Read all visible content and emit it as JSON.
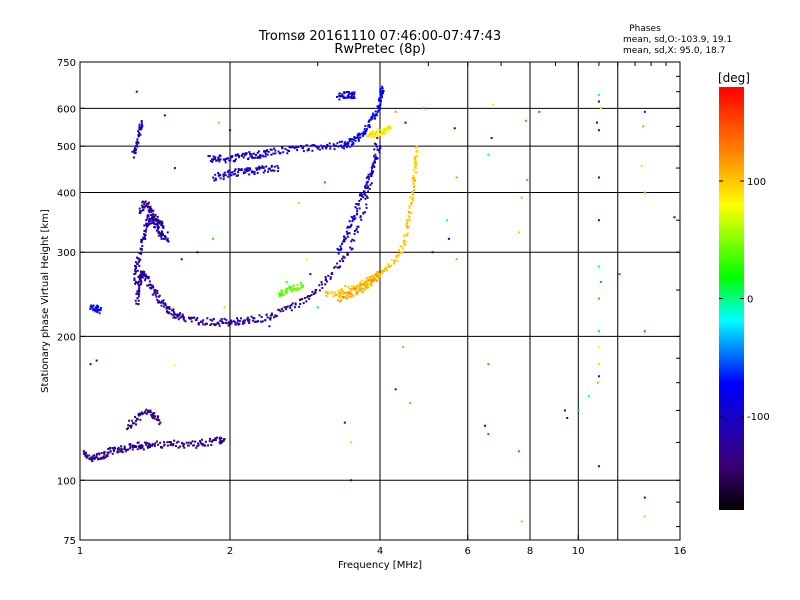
{
  "chart_data": {
    "type": "scatter",
    "title": "Tromsø 20161110 07:46:00-07:47:43",
    "subtitle": "RwPretec (8p)",
    "xlabel": "Frequency [MHz]",
    "ylabel": "Stationary phase Virtual Height [km]",
    "x_scale": "log",
    "y_scale": "log",
    "xlim": [
      1,
      16
    ],
    "ylim": [
      75,
      750
    ],
    "x_ticks": [
      1,
      2,
      4,
      6,
      8,
      10,
      16
    ],
    "x_tick_labels": [
      "1",
      "2",
      "4",
      "6",
      "8",
      "10",
      "16"
    ],
    "x_grid": [
      2,
      4,
      6,
      8,
      10,
      12
    ],
    "y_ticks": [
      75,
      100,
      200,
      300,
      400,
      500,
      600,
      750
    ],
    "y_tick_labels": [
      "75",
      "100",
      "200",
      "300",
      "400",
      "500",
      "600",
      "750"
    ],
    "y_grid": [
      100,
      200,
      300,
      400,
      500,
      600
    ],
    "grid": true,
    "legend": {
      "title": "Phases",
      "line1": "mean, sd,O:-103.9, 19.1",
      "line2": "mean, sd,X:  95.0, 18.7"
    },
    "colorbar": {
      "label": "[deg]",
      "range": [
        -180,
        180
      ],
      "ticks": [
        100,
        0,
        -100
      ],
      "tick_labels": [
        "100",
        "0",
        "-100"
      ]
    },
    "series": [
      {
        "name": "O",
        "phase_mean": -103.9,
        "traces": [
          {
            "x": [
              1.02,
              1.05,
              1.08,
              1.12,
              1.15,
              1.2,
              1.25,
              1.3,
              1.35,
              1.4,
              1.5,
              1.6,
              1.7,
              1.8,
              1.9,
              1.95
            ],
            "y": [
              114,
              111,
              112,
              113,
              115,
              116,
              117,
              118,
              118,
              119,
              119,
              119,
              119,
              120,
              121,
              122
            ],
            "phase": -125
          },
          {
            "x": [
              1.3,
              1.31,
              1.32,
              1.33,
              1.35,
              1.38,
              1.42,
              1.46,
              1.5,
              1.55,
              1.6,
              1.7,
              1.8,
              1.9,
              2.0,
              2.1,
              2.2,
              2.35,
              2.5,
              2.7,
              2.9,
              3.1,
              3.3,
              3.5,
              3.7,
              3.85,
              3.95
            ],
            "y": [
              235,
              250,
              265,
              270,
              268,
              258,
              245,
              235,
              228,
              222,
              219,
              216,
              215,
              214,
              214,
              215,
              216,
              219,
              224,
              232,
              243,
              260,
              280,
              310,
              360,
              430,
              520
            ],
            "phase": -120
          },
          {
            "x": [
              1.29,
              1.3,
              1.32,
              1.34,
              1.36,
              1.38,
              1.4,
              1.43,
              1.46,
              1.5
            ],
            "y": [
              260,
              280,
              300,
              320,
              340,
              355,
              350,
              335,
              325,
              320
            ],
            "phase": -110
          },
          {
            "x": [
              1.32,
              1.35,
              1.38,
              1.41,
              1.44,
              1.47
            ],
            "y": [
              360,
              380,
              370,
              355,
              345,
              340
            ],
            "phase": -128
          },
          {
            "x": [
              1.82,
              1.9,
              2.0,
              2.1,
              2.2,
              2.3,
              2.4,
              2.6,
              2.8,
              3.0,
              3.2,
              3.4
            ],
            "y": [
              470,
              472,
              470,
              475,
              478,
              480,
              485,
              490,
              495,
              498,
              500,
              505
            ],
            "phase": -95
          },
          {
            "x": [
              1.85,
              1.95,
              2.05,
              2.15,
              2.25,
              2.35,
              2.5
            ],
            "y": [
              430,
              435,
              440,
              442,
              445,
              448,
              450
            ],
            "phase": -100
          },
          {
            "x": [
              3.4,
              3.5,
              3.6,
              3.7,
              3.8,
              3.9,
              4.0,
              4.02,
              4.05
            ],
            "y": [
              500,
              510,
              520,
              535,
              555,
              580,
              610,
              640,
              660
            ],
            "phase": -80
          },
          {
            "x": [
              3.3,
              3.4,
              3.5,
              3.6,
              3.7,
              3.8,
              3.9,
              4.0
            ],
            "y": [
              300,
              320,
              345,
              370,
              400,
              430,
              460,
              500
            ],
            "phase": -90
          },
          {
            "x": [
              1.25,
              1.3,
              1.35,
              1.4,
              1.45
            ],
            "y": [
              130,
              134,
              140,
              137,
              132
            ],
            "phase": -135
          },
          {
            "x": [
              1.28,
              1.3,
              1.32,
              1.33
            ],
            "y": [
              480,
              500,
              540,
              560
            ],
            "phase": -105
          },
          {
            "x": [
              3.3,
              3.4,
              3.5,
              3.55
            ],
            "y": [
              635,
              638,
              640,
              642
            ],
            "phase": -85
          },
          {
            "x": [
              1.05,
              1.08,
              1.1
            ],
            "y": [
              228,
              230,
              227
            ],
            "phase": -75
          }
        ]
      },
      {
        "name": "X",
        "phase_mean": 95.0,
        "traces": [
          {
            "x": [
              3.1,
              3.3,
              3.5,
              3.7,
              3.9,
              4.1,
              4.3,
              4.45,
              4.55,
              4.62,
              4.68,
              4.72,
              4.75
            ],
            "y": [
              245,
              248,
              252,
              258,
              265,
              275,
              290,
              310,
              340,
              380,
              420,
              460,
              500
            ],
            "phase": 100
          },
          {
            "x": [
              3.3,
              3.4,
              3.5,
              3.6,
              3.7,
              3.8,
              3.9,
              4.0
            ],
            "y": [
              240,
              243,
              246,
              250,
              253,
              258,
              264,
              270
            ],
            "phase": 110
          },
          {
            "x": [
              3.8,
              3.9,
              4.0,
              4.1,
              4.2
            ],
            "y": [
              520,
              530,
              535,
              540,
              545
            ],
            "phase": 90
          },
          {
            "x": [
              2.5,
              2.6,
              2.7,
              2.8
            ],
            "y": [
              245,
              250,
              253,
              256
            ],
            "phase": 40
          }
        ]
      }
    ],
    "scatter_points": [
      {
        "x": 1.3,
        "y": 650,
        "phase": -100
      },
      {
        "x": 1.48,
        "y": 580,
        "phase": -90
      },
      {
        "x": 1.9,
        "y": 560,
        "phase": 40
      },
      {
        "x": 2.0,
        "y": 540,
        "phase": -80
      },
      {
        "x": 1.55,
        "y": 450,
        "phase": -110
      },
      {
        "x": 1.5,
        "y": 330,
        "phase": -100
      },
      {
        "x": 1.85,
        "y": 320,
        "phase": 20
      },
      {
        "x": 1.6,
        "y": 290,
        "phase": -100
      },
      {
        "x": 1.72,
        "y": 300,
        "phase": -110
      },
      {
        "x": 2.75,
        "y": 380,
        "phase": 100
      },
      {
        "x": 3.1,
        "y": 420,
        "phase": 150
      },
      {
        "x": 2.85,
        "y": 290,
        "phase": 80
      },
      {
        "x": 2.6,
        "y": 260,
        "phase": 30
      },
      {
        "x": 2.9,
        "y": 270,
        "phase": -100
      },
      {
        "x": 1.95,
        "y": 230,
        "phase": 100
      },
      {
        "x": 3.0,
        "y": 230,
        "phase": 20
      },
      {
        "x": 2.4,
        "y": 210,
        "phase": -90
      },
      {
        "x": 4.3,
        "y": 590,
        "phase": 120
      },
      {
        "x": 4.9,
        "y": 600,
        "phase": 150
      },
      {
        "x": 5.65,
        "y": 545,
        "phase": -100
      },
      {
        "x": 6.75,
        "y": 610,
        "phase": 70
      },
      {
        "x": 6.7,
        "y": 520,
        "phase": -120
      },
      {
        "x": 6.6,
        "y": 480,
        "phase": -10
      },
      {
        "x": 7.85,
        "y": 565,
        "phase": 140
      },
      {
        "x": 8.35,
        "y": 590,
        "phase": 160
      },
      {
        "x": 5.7,
        "y": 430,
        "phase": 120
      },
      {
        "x": 5.45,
        "y": 350,
        "phase": -10
      },
      {
        "x": 5.5,
        "y": 320,
        "phase": -80
      },
      {
        "x": 5.1,
        "y": 300,
        "phase": -90
      },
      {
        "x": 5.7,
        "y": 290,
        "phase": 120
      },
      {
        "x": 7.7,
        "y": 390,
        "phase": 110
      },
      {
        "x": 7.9,
        "y": 425,
        "phase": 130
      },
      {
        "x": 7.6,
        "y": 330,
        "phase": 100
      },
      {
        "x": 11.0,
        "y": 640,
        "phase": -10
      },
      {
        "x": 11.0,
        "y": 620,
        "phase": -80
      },
      {
        "x": 11.1,
        "y": 600,
        "phase": 60
      },
      {
        "x": 10.9,
        "y": 560,
        "phase": -100
      },
      {
        "x": 11.0,
        "y": 540,
        "phase": -110
      },
      {
        "x": 11.0,
        "y": 430,
        "phase": -100
      },
      {
        "x": 11.0,
        "y": 350,
        "phase": -110
      },
      {
        "x": 11.0,
        "y": 280,
        "phase": -20
      },
      {
        "x": 11.1,
        "y": 260,
        "phase": -40
      },
      {
        "x": 11.0,
        "y": 240,
        "phase": 140
      },
      {
        "x": 11.0,
        "y": 205,
        "phase": -30
      },
      {
        "x": 11.0,
        "y": 190,
        "phase": 80
      },
      {
        "x": 11.0,
        "y": 175,
        "phase": 60
      },
      {
        "x": 11.0,
        "y": 165,
        "phase": -100
      },
      {
        "x": 10.95,
        "y": 160,
        "phase": 40
      },
      {
        "x": 10.5,
        "y": 150,
        "phase": -20
      },
      {
        "x": 10.0,
        "y": 140,
        "phase": -30
      },
      {
        "x": 9.5,
        "y": 135,
        "phase": -90
      },
      {
        "x": 9.4,
        "y": 140,
        "phase": -100
      },
      {
        "x": 11.0,
        "y": 107,
        "phase": -110
      },
      {
        "x": 12.1,
        "y": 270,
        "phase": 160
      },
      {
        "x": 13.6,
        "y": 590,
        "phase": -90
      },
      {
        "x": 13.5,
        "y": 550,
        "phase": 120
      },
      {
        "x": 13.4,
        "y": 455,
        "phase": 60
      },
      {
        "x": 13.6,
        "y": 400,
        "phase": 110
      },
      {
        "x": 13.6,
        "y": 205,
        "phase": 160
      },
      {
        "x": 13.6,
        "y": 92,
        "phase": -120
      },
      {
        "x": 13.6,
        "y": 84,
        "phase": 100
      },
      {
        "x": 15.6,
        "y": 355,
        "phase": -110
      },
      {
        "x": 6.6,
        "y": 175,
        "phase": 140
      },
      {
        "x": 6.5,
        "y": 130,
        "phase": -90
      },
      {
        "x": 6.6,
        "y": 125,
        "phase": 160
      },
      {
        "x": 7.6,
        "y": 115,
        "phase": 150
      },
      {
        "x": 7.7,
        "y": 82,
        "phase": 110
      },
      {
        "x": 4.3,
        "y": 155,
        "phase": -110
      },
      {
        "x": 4.6,
        "y": 145,
        "phase": 120
      },
      {
        "x": 3.4,
        "y": 132,
        "phase": -90
      },
      {
        "x": 3.5,
        "y": 120,
        "phase": 100
      },
      {
        "x": 3.5,
        "y": 100,
        "phase": -130
      },
      {
        "x": 1.05,
        "y": 175,
        "phase": -100
      },
      {
        "x": 1.08,
        "y": 178,
        "phase": -120
      },
      {
        "x": 1.55,
        "y": 174,
        "phase": 80
      },
      {
        "x": 4.45,
        "y": 190,
        "phase": 120
      },
      {
        "x": 4.5,
        "y": 560,
        "phase": -100
      }
    ]
  }
}
